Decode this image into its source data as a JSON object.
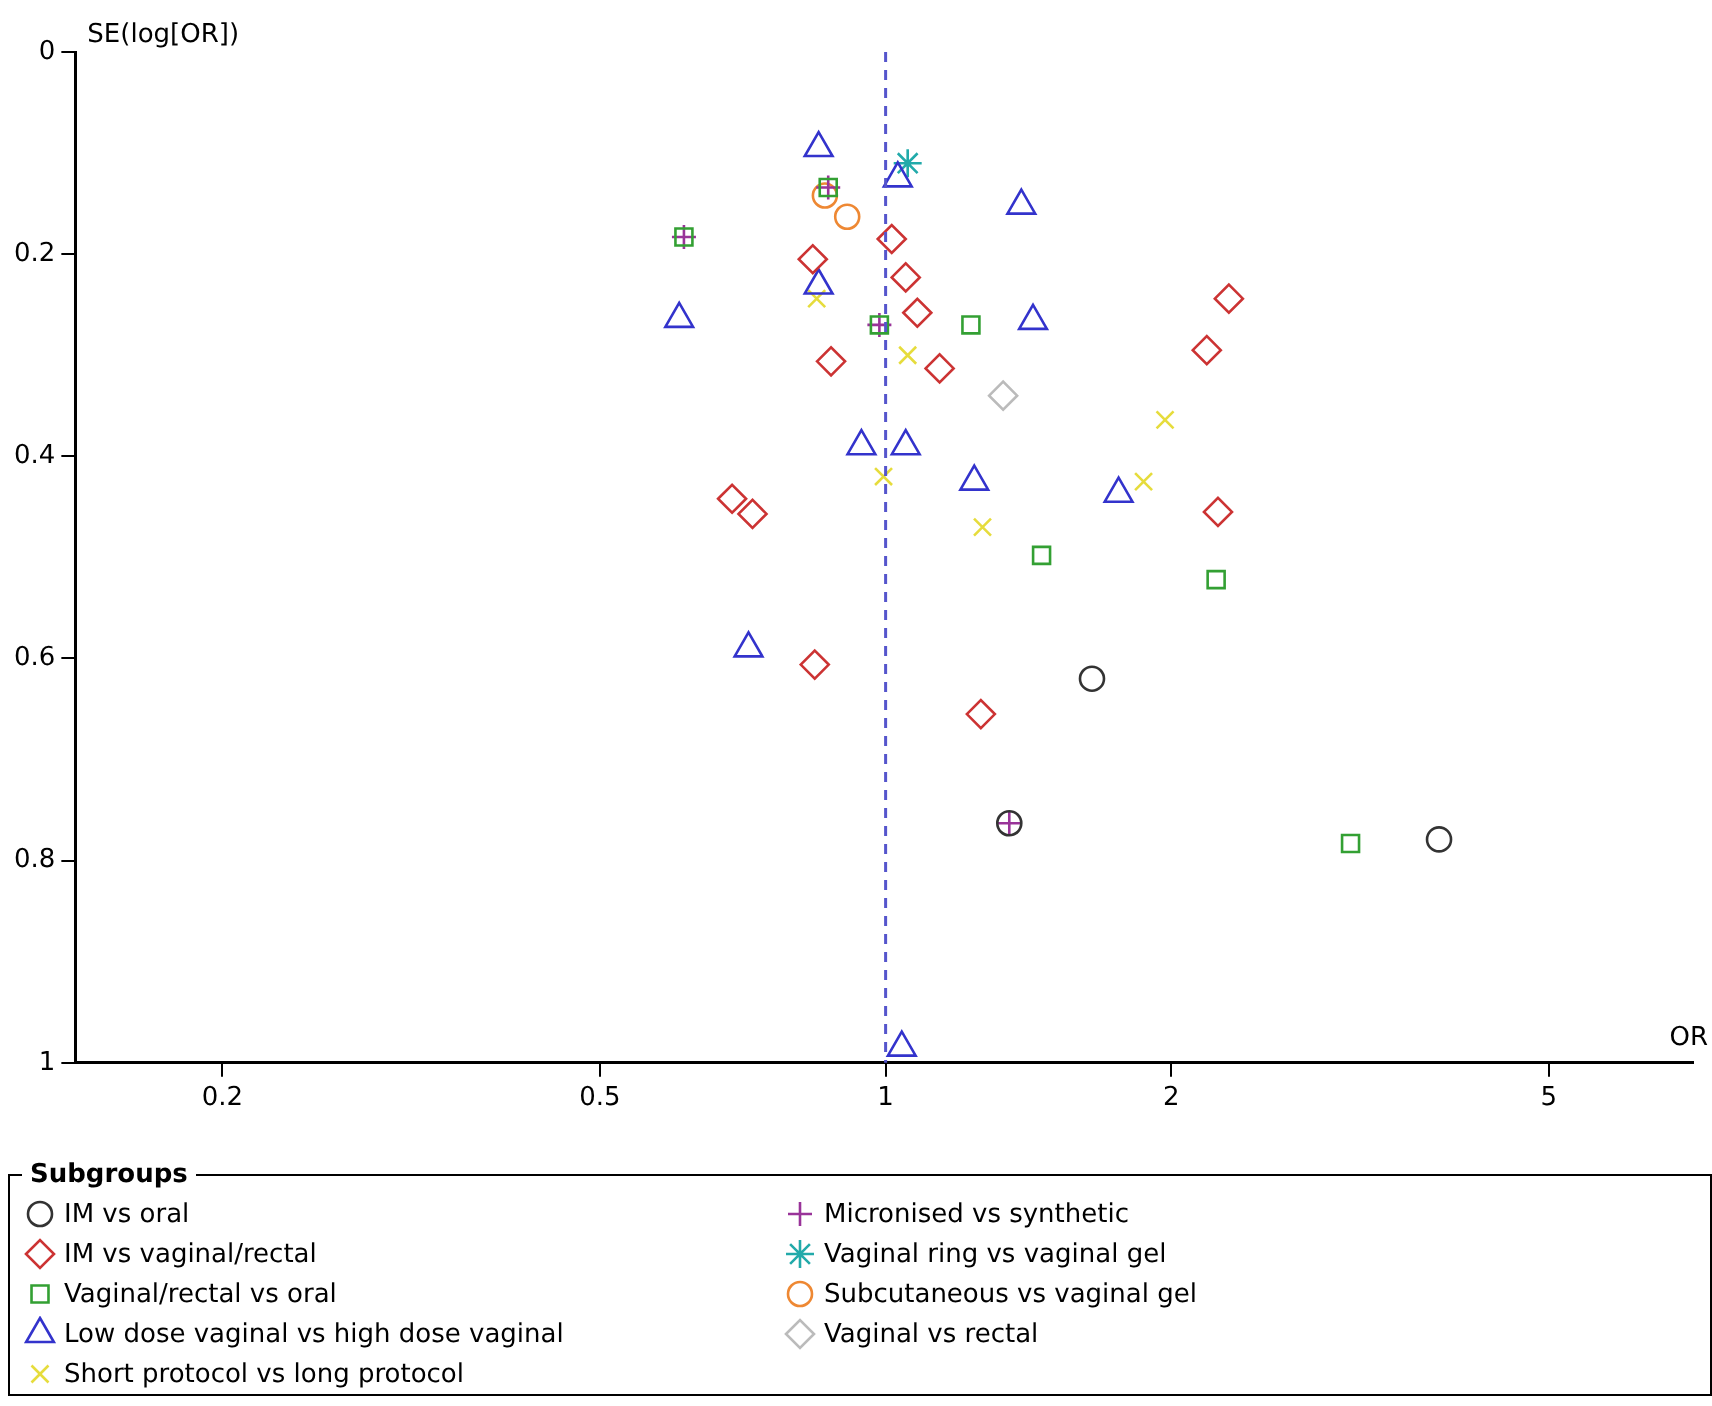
{
  "chart_data": {
    "type": "scatter",
    "xlabel": "OR",
    "ylabel": "SE(log[OR])",
    "legend_title": "Subgroups",
    "legend": "bottom",
    "log": "x",
    "grid": false,
    "xlim": [
      0.14,
      7.1
    ],
    "xticks": [
      0.2,
      0.5,
      1,
      2,
      5
    ],
    "ylim": [
      1,
      0
    ],
    "yticks": [
      0,
      0.2,
      0.4,
      0.6,
      0.8,
      1
    ],
    "ref_lines": [
      {
        "axis": "x",
        "value": 1,
        "color": "#5555cc",
        "line_style": "dashed"
      }
    ],
    "series": [
      {
        "name": "IM vs oral",
        "color": "#333333",
        "marker": "circle",
        "x": [
          1.65,
          3.83,
          1.35
        ],
        "values": [
          0.62,
          0.779,
          0.763
        ]
      },
      {
        "name": "IM vs vaginal/rectal",
        "color": "#cc3333",
        "marker": "diamond",
        "x": [
          0.838,
          0.876,
          0.689,
          0.724,
          0.842,
          1.015,
          1.05,
          1.08,
          1.14,
          2.3,
          2.18,
          2.24,
          1.26
        ],
        "values": [
          0.205,
          0.306,
          0.442,
          0.457,
          0.606,
          0.185,
          0.223,
          0.258,
          0.313,
          0.244,
          0.295,
          0.455,
          0.655
        ]
      },
      {
        "name": "Vaginal/rectal vs oral",
        "color": "#33a033",
        "marker": "square",
        "x": [
          0.613,
          0.87,
          0.985,
          1.23,
          1.46,
          2.23,
          3.09
        ],
        "values": [
          0.183,
          0.134,
          0.27,
          0.27,
          0.498,
          0.522,
          0.783
        ]
      },
      {
        "name": "Low dose vaginal vs high dose vaginal",
        "color": "#3333cc",
        "marker": "triangle",
        "x": [
          0.606,
          0.85,
          0.85,
          0.717,
          1.03,
          1.39,
          1.43,
          0.943,
          1.05,
          1.24,
          1.76,
          1.04
        ],
        "values": [
          0.264,
          0.095,
          0.231,
          0.59,
          0.125,
          0.152,
          0.266,
          0.39,
          0.39,
          0.425,
          0.437,
          0.985
        ]
      },
      {
        "name": "Short protocol vs long protocol",
        "color": "#e6dc3c",
        "marker": "cross",
        "x": [
          0.846,
          1.055,
          1.97,
          0.995,
          1.87,
          1.265
        ],
        "values": [
          0.244,
          0.3,
          0.364,
          0.42,
          0.425,
          0.47
        ]
      },
      {
        "name": "Micronised vs synthetic",
        "color": "#993399",
        "marker": "plus",
        "x": [
          0.613,
          0.87,
          0.985,
          1.35
        ],
        "values": [
          0.183,
          0.134,
          0.27,
          0.763
        ]
      },
      {
        "name": "Vaginal ring vs vaginal gel",
        "color": "#22aaaa",
        "x": [
          1.055
        ],
        "values": [
          0.11
        ]
      },
      {
        "name": "Subcutaneous vs vaginal gel",
        "color": "#ee8833",
        "marker": "circle",
        "x": [
          0.863,
          0.911
        ],
        "values": [
          0.142,
          0.163
        ]
      },
      {
        "name": "Vaginal vs rectal",
        "color": "#bbbbbb",
        "marker": "diamond",
        "x": [
          1.33
        ],
        "values": [
          0.34
        ]
      }
    ]
  }
}
